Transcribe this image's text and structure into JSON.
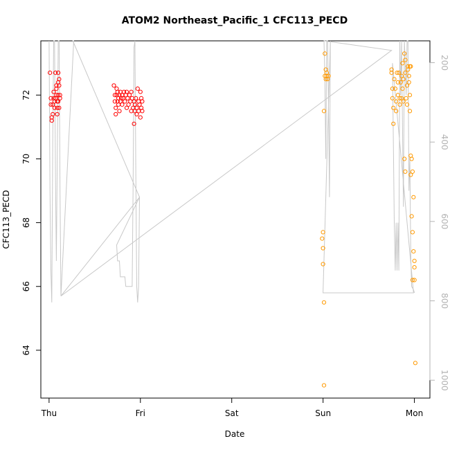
{
  "chart_data": {
    "type": "scatter",
    "title": "ATOM2 Northeast_Pacific_1 CFC113_PECD",
    "xlabel": "Date",
    "ylabel": "CFC113_PECD",
    "x_ticks": [
      "Thu",
      "Fri",
      "Sat",
      "Sun",
      "Mon"
    ],
    "x_range_days": [
      -0.09,
      4.17
    ],
    "y_range": [
      62.5,
      73.7
    ],
    "y_ticks": [
      64,
      66,
      68,
      70,
      72
    ],
    "y2_ticks": [
      200,
      400,
      600,
      800,
      1000
    ],
    "y2_range": [
      1045,
      145
    ],
    "grid": false,
    "colors": {
      "red": "#ff0000",
      "orange": "#ff9900",
      "profile": "#c8c8c8",
      "axis": "#000000",
      "right_axis": "#b3b3b3"
    },
    "series": [
      {
        "color_key": "red",
        "points": [
          [
            0.01,
            72.7
          ],
          [
            0.02,
            71.9
          ],
          [
            0.02,
            71.7
          ],
          [
            0.03,
            71.3
          ],
          [
            0.03,
            71.2
          ],
          [
            0.04,
            71.4
          ],
          [
            0.04,
            71.7
          ],
          [
            0.05,
            71.9
          ],
          [
            0.05,
            72.1
          ],
          [
            0.06,
            71.8
          ],
          [
            0.06,
            71.6
          ],
          [
            0.07,
            72.7
          ],
          [
            0.07,
            71.9
          ],
          [
            0.08,
            72.2
          ],
          [
            0.08,
            72.3
          ],
          [
            0.08,
            72.0
          ],
          [
            0.09,
            71.6
          ],
          [
            0.09,
            71.4
          ],
          [
            0.09,
            71.8
          ],
          [
            0.1,
            72.4
          ],
          [
            0.1,
            72.7
          ],
          [
            0.1,
            72.0
          ],
          [
            0.1,
            71.8
          ],
          [
            0.11,
            72.5
          ],
          [
            0.11,
            72.3
          ],
          [
            0.11,
            71.6
          ],
          [
            0.12,
            72.0
          ],
          [
            0.12,
            71.9
          ],
          [
            0.71,
            72.3
          ],
          [
            0.72,
            72.0
          ],
          [
            0.72,
            71.8
          ],
          [
            0.73,
            71.6
          ],
          [
            0.73,
            71.4
          ],
          [
            0.74,
            72.2
          ],
          [
            0.74,
            72.0
          ],
          [
            0.75,
            71.8
          ],
          [
            0.75,
            72.1
          ],
          [
            0.76,
            71.9
          ],
          [
            0.76,
            71.7
          ],
          [
            0.77,
            72.0
          ],
          [
            0.77,
            71.5
          ],
          [
            0.78,
            72.1
          ],
          [
            0.78,
            71.8
          ],
          [
            0.79,
            71.9
          ],
          [
            0.8,
            72.0
          ],
          [
            0.8,
            71.7
          ],
          [
            0.81,
            71.9
          ],
          [
            0.82,
            72.1
          ],
          [
            0.83,
            71.8
          ],
          [
            0.84,
            72.0
          ],
          [
            0.85,
            71.6
          ],
          [
            0.85,
            72.1
          ],
          [
            0.86,
            71.9
          ],
          [
            0.87,
            71.7
          ],
          [
            0.88,
            72.0
          ],
          [
            0.89,
            71.8
          ],
          [
            0.9,
            72.1
          ],
          [
            0.9,
            71.5
          ],
          [
            0.91,
            71.9
          ],
          [
            0.92,
            71.6
          ],
          [
            0.93,
            71.8
          ],
          [
            0.93,
            71.1
          ],
          [
            0.94,
            71.7
          ],
          [
            0.94,
            71.5
          ],
          [
            0.95,
            71.9
          ],
          [
            0.96,
            71.6
          ],
          [
            0.96,
            71.4
          ],
          [
            0.97,
            72.2
          ],
          [
            0.98,
            71.8
          ],
          [
            0.98,
            71.5
          ],
          [
            0.99,
            71.7
          ],
          [
            1.0,
            71.3
          ],
          [
            1.0,
            72.1
          ],
          [
            1.01,
            71.9
          ],
          [
            1.01,
            71.6
          ],
          [
            1.02,
            71.8
          ],
          [
            1.02,
            71.5
          ]
        ]
      },
      {
        "color_key": "orange",
        "points": [
          [
            2.99,
            67.5
          ],
          [
            3.0,
            67.7
          ],
          [
            3.0,
            67.2
          ],
          [
            3.0,
            66.7
          ],
          [
            3.01,
            65.5
          ],
          [
            3.01,
            62.9
          ],
          [
            3.01,
            71.5
          ],
          [
            3.02,
            73.3
          ],
          [
            3.02,
            72.6
          ],
          [
            3.03,
            72.8
          ],
          [
            3.03,
            72.5
          ],
          [
            3.04,
            72.7
          ],
          [
            3.04,
            72.6
          ],
          [
            3.05,
            72.5
          ],
          [
            3.06,
            72.6
          ],
          [
            3.75,
            72.8
          ],
          [
            3.75,
            72.7
          ],
          [
            3.76,
            72.2
          ],
          [
            3.76,
            71.9
          ],
          [
            3.77,
            71.6
          ],
          [
            3.77,
            71.1
          ],
          [
            3.78,
            72.5
          ],
          [
            3.79,
            72.2
          ],
          [
            3.8,
            71.8
          ],
          [
            3.8,
            71.5
          ],
          [
            3.81,
            72.7
          ],
          [
            3.82,
            72.4
          ],
          [
            3.82,
            72.0
          ],
          [
            3.83,
            72.7
          ],
          [
            3.84,
            71.7
          ],
          [
            3.84,
            71.9
          ],
          [
            3.85,
            72.4
          ],
          [
            3.86,
            72.6
          ],
          [
            3.86,
            71.9
          ],
          [
            3.87,
            73.0
          ],
          [
            3.87,
            72.2
          ],
          [
            3.88,
            72.5
          ],
          [
            3.88,
            71.8
          ],
          [
            3.89,
            70.0
          ],
          [
            3.89,
            73.3
          ],
          [
            3.9,
            73.1
          ],
          [
            3.9,
            72.7
          ],
          [
            3.9,
            69.6
          ],
          [
            3.91,
            71.9
          ],
          [
            3.92,
            72.3
          ],
          [
            3.92,
            71.7
          ],
          [
            3.93,
            72.9
          ],
          [
            3.93,
            72.8
          ],
          [
            3.94,
            72.4
          ],
          [
            3.94,
            72.6
          ],
          [
            3.95,
            72.9
          ],
          [
            3.95,
            72.0
          ],
          [
            3.95,
            71.5
          ],
          [
            3.96,
            72.9
          ],
          [
            3.96,
            70.1
          ],
          [
            3.96,
            69.5
          ],
          [
            3.97,
            70.0
          ],
          [
            3.97,
            68.2
          ],
          [
            3.98,
            69.6
          ],
          [
            3.98,
            67.7
          ],
          [
            3.98,
            66.2
          ],
          [
            3.99,
            68.8
          ],
          [
            3.99,
            67.1
          ],
          [
            4.0,
            66.8
          ],
          [
            4.0,
            66.6
          ],
          [
            4.0,
            66.2
          ],
          [
            4.01,
            63.6
          ]
        ]
      }
    ],
    "profile_line": [
      [
        0.0,
        73.7
      ],
      [
        0.01,
        69.0
      ],
      [
        0.02,
        66.5
      ],
      [
        0.03,
        65.5
      ],
      [
        0.04,
        70.5
      ],
      [
        0.05,
        73.7
      ],
      [
        0.06,
        73.7
      ],
      [
        0.07,
        69.5
      ],
      [
        0.08,
        66.8
      ],
      [
        0.09,
        70.0
      ],
      [
        0.1,
        73.7
      ],
      [
        0.11,
        73.7
      ],
      [
        0.12,
        69.0
      ],
      [
        0.13,
        65.7
      ],
      [
        0.27,
        73.7
      ],
      [
        0.26,
        73.7
      ],
      [
        0.99,
        68.8
      ],
      [
        0.74,
        67.3
      ],
      [
        0.75,
        66.8
      ],
      [
        0.77,
        66.8
      ],
      [
        0.78,
        66.3
      ],
      [
        0.83,
        66.3
      ],
      [
        0.84,
        66.0
      ],
      [
        0.91,
        66.0
      ],
      [
        0.92,
        69.0
      ],
      [
        0.93,
        73.5
      ],
      [
        0.94,
        73.7
      ],
      [
        0.95,
        69.5
      ],
      [
        0.96,
        66.0
      ],
      [
        0.97,
        65.5
      ],
      [
        0.98,
        66.0
      ],
      [
        0.99,
        68.8
      ],
      [
        0.13,
        65.7
      ],
      [
        3.75,
        73.4
      ],
      [
        3.01,
        73.7
      ],
      [
        3.02,
        72.5
      ],
      [
        3.03,
        70.0
      ],
      [
        3.04,
        73.7
      ],
      [
        3.05,
        73.7
      ],
      [
        3.06,
        71.5
      ],
      [
        3.07,
        68.8
      ],
      [
        3.08,
        73.7
      ],
      [
        3.0,
        65.8
      ],
      [
        3.99,
        65.8
      ],
      [
        3.76,
        73.0
      ],
      [
        3.78,
        68.0
      ],
      [
        3.79,
        66.5
      ],
      [
        3.8,
        68.0
      ],
      [
        3.81,
        66.5
      ],
      [
        3.82,
        68.0
      ],
      [
        3.83,
        66.5
      ],
      [
        3.84,
        73.7
      ],
      [
        3.85,
        72.0
      ],
      [
        3.86,
        73.7
      ],
      [
        3.87,
        71.0
      ],
      [
        3.88,
        68.5
      ],
      [
        3.89,
        73.7
      ],
      [
        3.9,
        73.0
      ],
      [
        3.91,
        72.0
      ],
      [
        3.92,
        73.7
      ],
      [
        3.93,
        73.7
      ],
      [
        3.94,
        69.0
      ],
      [
        3.95,
        70.0
      ],
      [
        3.96,
        67.0
      ],
      [
        3.97,
        66.0
      ],
      [
        3.99,
        65.9
      ],
      [
        4.0,
        65.8
      ]
    ]
  }
}
